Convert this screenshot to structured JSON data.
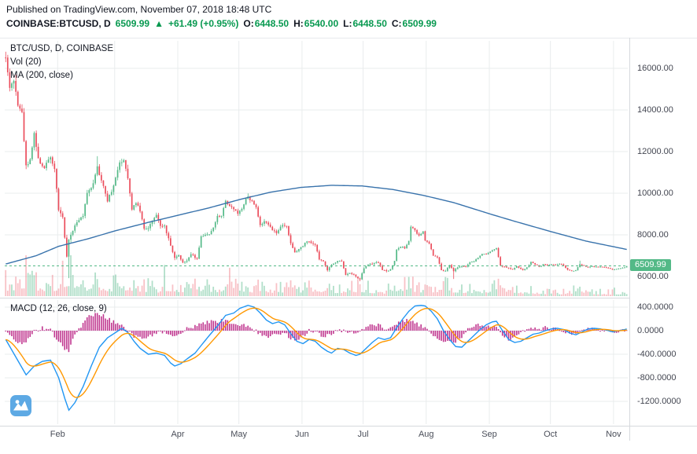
{
  "header": {
    "published": "Published on TradingView.com, November 07, 2018 18:48 UTC",
    "symbol": "COINBASE:BTCUSD, D",
    "last_price": "6509.99",
    "direction_arrow": "▲",
    "change": "+61.49 (+0.95%)",
    "ohlc": {
      "o_label": "O:",
      "o": "6448.50",
      "h_label": "H:",
      "h": "6540.00",
      "l_label": "L:",
      "l": "6448.50",
      "c_label": "C:",
      "c": "6509.99"
    }
  },
  "legend": {
    "main": "BTC/USD, D, COINBASE",
    "volume": "Vol (20)",
    "ma": "MA (200, close)",
    "macd": "MACD (12, 26, close, 9)"
  },
  "colors": {
    "up": "#53b987",
    "down": "#eb4d5c",
    "vol_up": "rgba(83,185,135,0.45)",
    "vol_down": "rgba(235,77,92,0.35)",
    "ma": "#3973ac",
    "macd_line": "#2196f3",
    "signal_line": "#ff9800",
    "hist": "#c0368f",
    "grid": "#e9eced",
    "axis_text": "#434651",
    "green_text": "#089950",
    "badge_bg": "#53b987",
    "logo_bg": "#419be0"
  },
  "chart_data": [
    {
      "type": "candlestick",
      "title": "BTC/USD, D, COINBASE",
      "exchange": "COINBASE",
      "interval": "D",
      "last_price": 6509.99,
      "ylim": [
        5100,
        17300
      ],
      "y_ticks": [
        16000,
        14000,
        12000,
        10000,
        8000,
        6000
      ],
      "y_tick_labels": [
        "16000.00",
        "14000.00",
        "12000.00",
        "10000.00",
        "8000.00",
        "6000.00"
      ],
      "days_total": 306,
      "seed": 1337,
      "gridline_days": [
        26,
        54,
        85,
        115,
        146,
        176,
        207,
        238,
        268,
        299
      ],
      "month_labels": [
        [
          "Feb",
          26
        ],
        [
          "Apr",
          85
        ],
        [
          "May",
          115
        ],
        [
          "Jun",
          146
        ],
        [
          "Jul",
          176
        ],
        [
          "Aug",
          207
        ],
        [
          "Sep",
          238
        ],
        [
          "Oct",
          268
        ],
        [
          "Nov",
          299
        ]
      ],
      "close_anchors": [
        [
          0,
          16600
        ],
        [
          2,
          15050
        ],
        [
          4,
          15420
        ],
        [
          6,
          14300
        ],
        [
          8,
          13850
        ],
        [
          10,
          11300
        ],
        [
          12,
          11650
        ],
        [
          14,
          12880
        ],
        [
          16,
          11600
        ],
        [
          19,
          11250
        ],
        [
          22,
          11780
        ],
        [
          24,
          11150
        ],
        [
          26,
          9170
        ],
        [
          28,
          8830
        ],
        [
          30,
          6940
        ],
        [
          31,
          7760
        ],
        [
          33,
          8250
        ],
        [
          35,
          8620
        ],
        [
          38,
          8920
        ],
        [
          40,
          10020
        ],
        [
          43,
          10450
        ],
        [
          45,
          11230
        ],
        [
          48,
          10350
        ],
        [
          50,
          9660
        ],
        [
          53,
          10320
        ],
        [
          56,
          11460
        ],
        [
          58,
          11640
        ],
        [
          60,
          10720
        ],
        [
          62,
          9250
        ],
        [
          64,
          9560
        ],
        [
          66,
          9140
        ],
        [
          68,
          8270
        ],
        [
          70,
          8330
        ],
        [
          72,
          8680
        ],
        [
          74,
          8950
        ],
        [
          76,
          8440
        ],
        [
          78,
          8460
        ],
        [
          80,
          7790
        ],
        [
          83,
          6890
        ],
        [
          85,
          7040
        ],
        [
          87,
          6660
        ],
        [
          89,
          6790
        ],
        [
          91,
          7060
        ],
        [
          94,
          6860
        ],
        [
          96,
          7920
        ],
        [
          98,
          7960
        ],
        [
          100,
          8060
        ],
        [
          102,
          8360
        ],
        [
          104,
          8870
        ],
        [
          106,
          8940
        ],
        [
          108,
          9660
        ],
        [
          110,
          9330
        ],
        [
          112,
          9240
        ],
        [
          114,
          9060
        ],
        [
          116,
          9250
        ],
        [
          118,
          9710
        ],
        [
          119,
          9830
        ],
        [
          121,
          9590
        ],
        [
          123,
          9340
        ],
        [
          125,
          8460
        ],
        [
          127,
          8690
        ],
        [
          129,
          8510
        ],
        [
          131,
          8230
        ],
        [
          133,
          8110
        ],
        [
          134,
          8260
        ],
        [
          136,
          8490
        ],
        [
          138,
          8390
        ],
        [
          140,
          7560
        ],
        [
          142,
          7130
        ],
        [
          144,
          7340
        ],
        [
          146,
          7490
        ],
        [
          148,
          7710
        ],
        [
          150,
          7640
        ],
        [
          152,
          7510
        ],
        [
          154,
          6840
        ],
        [
          156,
          6730
        ],
        [
          158,
          6310
        ],
        [
          160,
          6540
        ],
        [
          162,
          6660
        ],
        [
          163,
          6760
        ],
        [
          165,
          6710
        ],
        [
          167,
          6060
        ],
        [
          169,
          6160
        ],
        [
          171,
          6090
        ],
        [
          173,
          5890
        ],
        [
          174,
          5870
        ],
        [
          176,
          6390
        ],
        [
          178,
          6560
        ],
        [
          180,
          6610
        ],
        [
          183,
          6690
        ],
        [
          185,
          6310
        ],
        [
          187,
          6260
        ],
        [
          189,
          6340
        ],
        [
          191,
          6760
        ],
        [
          192,
          7310
        ],
        [
          194,
          7440
        ],
        [
          196,
          7360
        ],
        [
          198,
          7690
        ],
        [
          199,
          8390
        ],
        [
          201,
          8210
        ],
        [
          203,
          7940
        ],
        [
          205,
          8190
        ],
        [
          206,
          7740
        ],
        [
          208,
          7590
        ],
        [
          210,
          7010
        ],
        [
          212,
          6940
        ],
        [
          214,
          6310
        ],
        [
          216,
          6260
        ],
        [
          218,
          6540
        ],
        [
          220,
          6260
        ],
        [
          222,
          6440
        ],
        [
          224,
          6510
        ],
        [
          226,
          6460
        ],
        [
          228,
          6690
        ],
        [
          230,
          6740
        ],
        [
          232,
          6910
        ],
        [
          234,
          7090
        ],
        [
          236,
          7060
        ],
        [
          238,
          7190
        ],
        [
          241,
          7350
        ],
        [
          243,
          6510
        ],
        [
          245,
          6460
        ],
        [
          247,
          6390
        ],
        [
          249,
          6330
        ],
        [
          251,
          6490
        ],
        [
          254,
          6290
        ],
        [
          256,
          6440
        ],
        [
          258,
          6690
        ],
        [
          260,
          6590
        ],
        [
          262,
          6460
        ],
        [
          264,
          6590
        ],
        [
          266,
          6540
        ],
        [
          268,
          6590
        ],
        [
          270,
          6560
        ],
        [
          272,
          6610
        ],
        [
          274,
          6540
        ],
        [
          276,
          6310
        ],
        [
          278,
          6260
        ],
        [
          280,
          6310
        ],
        [
          282,
          6590
        ],
        [
          284,
          6510
        ],
        [
          286,
          6440
        ],
        [
          288,
          6490
        ],
        [
          290,
          6460
        ],
        [
          292,
          6470
        ],
        [
          294,
          6440
        ],
        [
          296,
          6410
        ],
        [
          298,
          6330
        ],
        [
          300,
          6370
        ],
        [
          302,
          6390
        ],
        [
          304,
          6440
        ],
        [
          305,
          6510
        ]
      ],
      "wick_lows": [
        [
          31,
          5920
        ],
        [
          174,
          5770
        ],
        [
          220,
          5880
        ]
      ],
      "wick_highs": [
        [
          45,
          11780
        ],
        [
          119,
          9990
        ],
        [
          282,
          6760
        ]
      ],
      "ma200_anchors": [
        [
          0,
          6600
        ],
        [
          15,
          7000
        ],
        [
          26,
          7450
        ],
        [
          40,
          7800
        ],
        [
          54,
          8200
        ],
        [
          70,
          8600
        ],
        [
          85,
          8950
        ],
        [
          100,
          9300
        ],
        [
          115,
          9700
        ],
        [
          130,
          10050
        ],
        [
          145,
          10280
        ],
        [
          160,
          10380
        ],
        [
          175,
          10350
        ],
        [
          190,
          10180
        ],
        [
          205,
          9900
        ],
        [
          220,
          9550
        ],
        [
          238,
          9000
        ],
        [
          250,
          8650
        ],
        [
          268,
          8150
        ],
        [
          285,
          7700
        ],
        [
          299,
          7420
        ],
        [
          305,
          7300
        ]
      ],
      "volume_anchors": [
        [
          0,
          0.55
        ],
        [
          8,
          0.6
        ],
        [
          10,
          0.95
        ],
        [
          12,
          0.7
        ],
        [
          16,
          0.5
        ],
        [
          22,
          0.45
        ],
        [
          26,
          0.6
        ],
        [
          31,
          1.0
        ],
        [
          35,
          0.75
        ],
        [
          40,
          0.55
        ],
        [
          45,
          0.5
        ],
        [
          50,
          0.45
        ],
        [
          58,
          0.5
        ],
        [
          62,
          0.55
        ],
        [
          68,
          0.4
        ],
        [
          74,
          0.35
        ],
        [
          83,
          0.45
        ],
        [
          89,
          0.3
        ],
        [
          96,
          0.5
        ],
        [
          104,
          0.35
        ],
        [
          110,
          0.4
        ],
        [
          119,
          0.35
        ],
        [
          125,
          0.4
        ],
        [
          134,
          0.3
        ],
        [
          140,
          0.35
        ],
        [
          146,
          0.3
        ],
        [
          155,
          0.4
        ],
        [
          163,
          0.3
        ],
        [
          169,
          0.35
        ],
        [
          174,
          0.42
        ],
        [
          180,
          0.3
        ],
        [
          186,
          0.25
        ],
        [
          192,
          0.4
        ],
        [
          199,
          0.45
        ],
        [
          206,
          0.35
        ],
        [
          212,
          0.4
        ],
        [
          214,
          0.45
        ],
        [
          220,
          0.35
        ],
        [
          228,
          0.3
        ],
        [
          234,
          0.3
        ],
        [
          241,
          0.4
        ],
        [
          243,
          0.5
        ],
        [
          249,
          0.3
        ],
        [
          254,
          0.25
        ],
        [
          262,
          0.2
        ],
        [
          268,
          0.2
        ],
        [
          274,
          0.18
        ],
        [
          278,
          0.25
        ],
        [
          282,
          0.3
        ],
        [
          290,
          0.18
        ],
        [
          298,
          0.15
        ],
        [
          302,
          0.18
        ],
        [
          305,
          0.2
        ]
      ]
    },
    {
      "type": "macd",
      "params": "(12, 26, close, 9)",
      "signal_ema_period": 9,
      "y_ticks": [
        400,
        0,
        -400,
        -800,
        -1200
      ],
      "y_tick_labels": [
        "400.0000",
        "0.0000",
        "-400.0000",
        "-800.0000",
        "-1200.0000"
      ],
      "macd_anchors": [
        [
          0,
          -150
        ],
        [
          5,
          -450
        ],
        [
          10,
          -750
        ],
        [
          14,
          -600
        ],
        [
          18,
          -520
        ],
        [
          22,
          -500
        ],
        [
          26,
          -800
        ],
        [
          29,
          -1150
        ],
        [
          31,
          -1350
        ],
        [
          34,
          -1220
        ],
        [
          38,
          -950
        ],
        [
          42,
          -600
        ],
        [
          46,
          -280
        ],
        [
          50,
          -120
        ],
        [
          54,
          -30
        ],
        [
          57,
          40
        ],
        [
          60,
          -30
        ],
        [
          63,
          -180
        ],
        [
          66,
          -300
        ],
        [
          70,
          -400
        ],
        [
          74,
          -380
        ],
        [
          78,
          -420
        ],
        [
          81,
          -550
        ],
        [
          83,
          -600
        ],
        [
          86,
          -560
        ],
        [
          89,
          -480
        ],
        [
          93,
          -380
        ],
        [
          96,
          -250
        ],
        [
          100,
          -80
        ],
        [
          104,
          80
        ],
        [
          108,
          260
        ],
        [
          112,
          300
        ],
        [
          115,
          380
        ],
        [
          119,
          430
        ],
        [
          122,
          400
        ],
        [
          125,
          300
        ],
        [
          128,
          180
        ],
        [
          131,
          120
        ],
        [
          134,
          150
        ],
        [
          137,
          100
        ],
        [
          140,
          -50
        ],
        [
          143,
          -180
        ],
        [
          146,
          -220
        ],
        [
          149,
          -150
        ],
        [
          152,
          -180
        ],
        [
          155,
          -280
        ],
        [
          158,
          -350
        ],
        [
          160,
          -380
        ],
        [
          163,
          -300
        ],
        [
          166,
          -320
        ],
        [
          169,
          -380
        ],
        [
          172,
          -420
        ],
        [
          174,
          -400
        ],
        [
          177,
          -300
        ],
        [
          180,
          -200
        ],
        [
          183,
          -120
        ],
        [
          186,
          -150
        ],
        [
          189,
          -120
        ],
        [
          192,
          50
        ],
        [
          195,
          200
        ],
        [
          198,
          330
        ],
        [
          201,
          420
        ],
        [
          204,
          430
        ],
        [
          206,
          420
        ],
        [
          209,
          330
        ],
        [
          212,
          200
        ],
        [
          215,
          0
        ],
        [
          218,
          -150
        ],
        [
          221,
          -270
        ],
        [
          224,
          -280
        ],
        [
          227,
          -180
        ],
        [
          230,
          -80
        ],
        [
          233,
          20
        ],
        [
          236,
          100
        ],
        [
          239,
          150
        ],
        [
          241,
          160
        ],
        [
          244,
          0
        ],
        [
          247,
          -150
        ],
        [
          250,
          -200
        ],
        [
          253,
          -180
        ],
        [
          256,
          -120
        ],
        [
          259,
          -60
        ],
        [
          262,
          -40
        ],
        [
          265,
          0
        ],
        [
          268,
          30
        ],
        [
          271,
          40
        ],
        [
          274,
          20
        ],
        [
          277,
          -40
        ],
        [
          280,
          -70
        ],
        [
          283,
          -20
        ],
        [
          286,
          30
        ],
        [
          289,
          40
        ],
        [
          292,
          30
        ],
        [
          295,
          10
        ],
        [
          298,
          -20
        ],
        [
          301,
          0
        ],
        [
          304,
          20
        ],
        [
          305,
          30
        ]
      ]
    }
  ]
}
